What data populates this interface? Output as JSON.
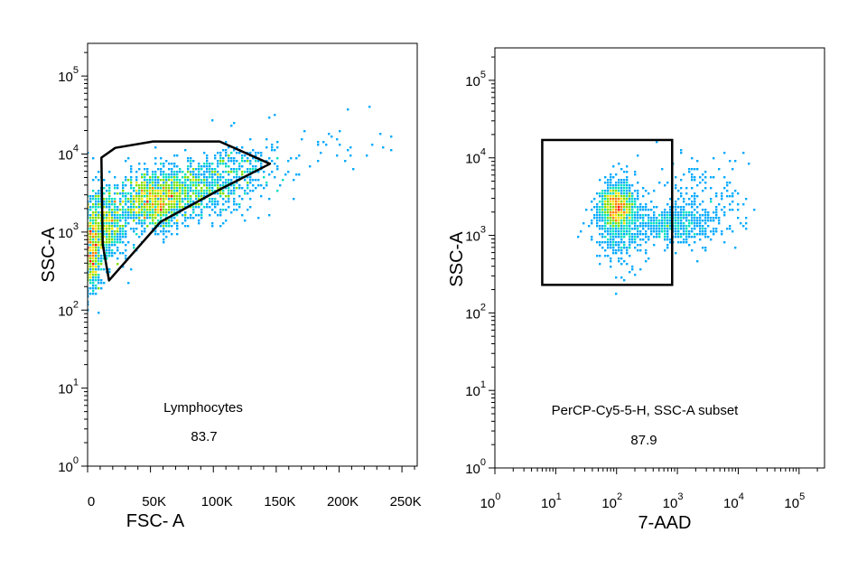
{
  "chart_data": [
    {
      "type": "scatter",
      "subtype": "flow-cytometry-density-dot-plot",
      "title": "",
      "xlabel": "FSC- A",
      "ylabel": "SSC-A",
      "x_scale": "linear",
      "y_scale": "log",
      "xlim": [
        0,
        262144
      ],
      "ylim": [
        1,
        262144
      ],
      "x_ticks": [
        {
          "value": 0,
          "label": "0"
        },
        {
          "value": 50000,
          "label": "50K"
        },
        {
          "value": 100000,
          "label": "100K"
        },
        {
          "value": 150000,
          "label": "150K"
        },
        {
          "value": 200000,
          "label": "200K"
        },
        {
          "value": 250000,
          "label": "250K"
        }
      ],
      "y_ticks": [
        {
          "exp": 0,
          "label_base": "10",
          "label_exp": "0"
        },
        {
          "exp": 1,
          "label_base": "10",
          "label_exp": "1"
        },
        {
          "exp": 2,
          "label_base": "10",
          "label_exp": "2"
        },
        {
          "exp": 3,
          "label_base": "10",
          "label_exp": "3"
        },
        {
          "exp": 4,
          "label_base": "10",
          "label_exp": "4"
        },
        {
          "exp": 5,
          "label_base": "10",
          "label_exp": "5"
        }
      ],
      "density_colors": [
        "#0000ff",
        "#00aaff",
        "#00e0c0",
        "#7ee000",
        "#ffe000",
        "#ff8000",
        "#ff0000"
      ],
      "clusters": [
        {
          "x": 52000,
          "y": 2500,
          "sx": 12000,
          "sy": 0.18,
          "n": 900
        },
        {
          "x": 15000,
          "y": 1200,
          "sx": 9000,
          "sy": 0.25,
          "n": 650
        },
        {
          "x": 4000,
          "y": 500,
          "sx": 3500,
          "sy": 0.25,
          "n": 400
        },
        {
          "x": 85000,
          "y": 3500,
          "sx": 22000,
          "sy": 0.18,
          "n": 700
        },
        {
          "x": 120000,
          "y": 6500,
          "sx": 20000,
          "sy": 0.16,
          "n": 220
        },
        {
          "x": 180000,
          "y": 12000,
          "sx": 40000,
          "sy": 0.22,
          "n": 40
        }
      ],
      "gate": {
        "name": "Lymphocytes",
        "value": "83.7",
        "shape": "polygon",
        "vertices": [
          [
            11000,
            9000
          ],
          [
            22000,
            12000
          ],
          [
            52000,
            14500
          ],
          [
            105000,
            14500
          ],
          [
            145000,
            7500
          ],
          [
            105000,
            3500
          ],
          [
            58000,
            1350
          ],
          [
            17000,
            240
          ],
          [
            12000,
            700
          ]
        ]
      }
    },
    {
      "type": "scatter",
      "subtype": "flow-cytometry-density-dot-plot",
      "title": "",
      "xlabel": "7-AAD",
      "ylabel": "SSC-A",
      "x_scale": "log",
      "y_scale": "log",
      "xlim": [
        1,
        262144
      ],
      "ylim": [
        1,
        262144
      ],
      "x_ticks": [
        {
          "exp": 0,
          "label_base": "10",
          "label_exp": "0"
        },
        {
          "exp": 1,
          "label_base": "10",
          "label_exp": "1"
        },
        {
          "exp": 2,
          "label_base": "10",
          "label_exp": "2"
        },
        {
          "exp": 3,
          "label_base": "10",
          "label_exp": "3"
        },
        {
          "exp": 4,
          "label_base": "10",
          "label_exp": "4"
        },
        {
          "exp": 5,
          "label_base": "10",
          "label_exp": "5"
        }
      ],
      "y_ticks": [
        {
          "exp": 0,
          "label_base": "10",
          "label_exp": "0"
        },
        {
          "exp": 1,
          "label_base": "10",
          "label_exp": "1"
        },
        {
          "exp": 2,
          "label_base": "10",
          "label_exp": "2"
        },
        {
          "exp": 3,
          "label_base": "10",
          "label_exp": "3"
        },
        {
          "exp": 4,
          "label_base": "10",
          "label_exp": "4"
        },
        {
          "exp": 5,
          "label_base": "10",
          "label_exp": "5"
        }
      ],
      "density_colors": [
        "#0000ff",
        "#00aaff",
        "#00e0c0",
        "#7ee000",
        "#ffe000",
        "#ff8000",
        "#ff0000"
      ],
      "clusters": [
        {
          "x": 100,
          "y": 2300,
          "sx": 0.14,
          "sy": 0.14,
          "n": 1200
        },
        {
          "x": 120,
          "y": 1400,
          "sx": 0.22,
          "sy": 0.28,
          "n": 500
        },
        {
          "x": 900,
          "y": 1400,
          "sx": 0.35,
          "sy": 0.12,
          "n": 450
        },
        {
          "x": 2500,
          "y": 2500,
          "sx": 0.35,
          "sy": 0.3,
          "n": 180
        }
      ],
      "gate": {
        "name": "PerCP-Cy5-5-H, SSC-A subset",
        "value": "87.9",
        "shape": "rectangle",
        "x_range": [
          6,
          820
        ],
        "y_range": [
          230,
          17000
        ]
      }
    }
  ]
}
